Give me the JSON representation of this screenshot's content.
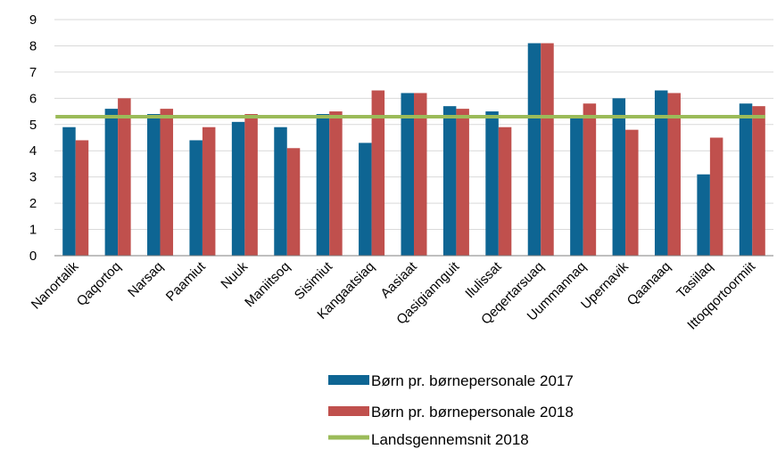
{
  "colors": {
    "series_2017": "#0e6593",
    "series_2018": "#c0504d",
    "average": "#9bbb59",
    "gridline": "#d9d9d9",
    "axis": "#7f7f7f"
  },
  "chart_data": {
    "type": "bar",
    "categories": [
      "Nanortalik",
      "Qaqortoq",
      "Narsaq",
      "Paamiut",
      "Nuuk",
      "Maniitsoq",
      "Sisimiut",
      "Kangaatsiaq",
      "Aasiaat",
      "Qasigiannguit",
      "Ilulissat",
      "Qeqertarsuaq",
      "Uummannaq",
      "Upernavik",
      "Qaanaaq",
      "Tasiilaq",
      "Ittoqqortoormiit"
    ],
    "series": [
      {
        "name": "Børn pr. børnepersonale 2017",
        "values": [
          4.9,
          5.6,
          5.4,
          4.4,
          5.1,
          4.9,
          5.4,
          4.3,
          6.2,
          5.7,
          5.5,
          8.1,
          5.3,
          6.0,
          6.3,
          3.1,
          5.8
        ]
      },
      {
        "name": "Børn pr. børnepersonale 2018",
        "values": [
          4.4,
          6.0,
          5.6,
          4.9,
          5.4,
          4.1,
          5.5,
          6.3,
          6.2,
          5.6,
          4.9,
          8.1,
          5.8,
          4.8,
          6.2,
          4.5,
          5.7
        ]
      }
    ],
    "reference_line": {
      "name": "Landsgennemsnit 2018",
      "value": 5.3
    },
    "yticks": [
      "0",
      "1",
      "2",
      "3",
      "4",
      "5",
      "6",
      "7",
      "8",
      "9"
    ],
    "ylim": [
      0,
      9
    ],
    "grid": true,
    "legend_position": "bottom",
    "title": "",
    "xlabel": "",
    "ylabel": ""
  }
}
